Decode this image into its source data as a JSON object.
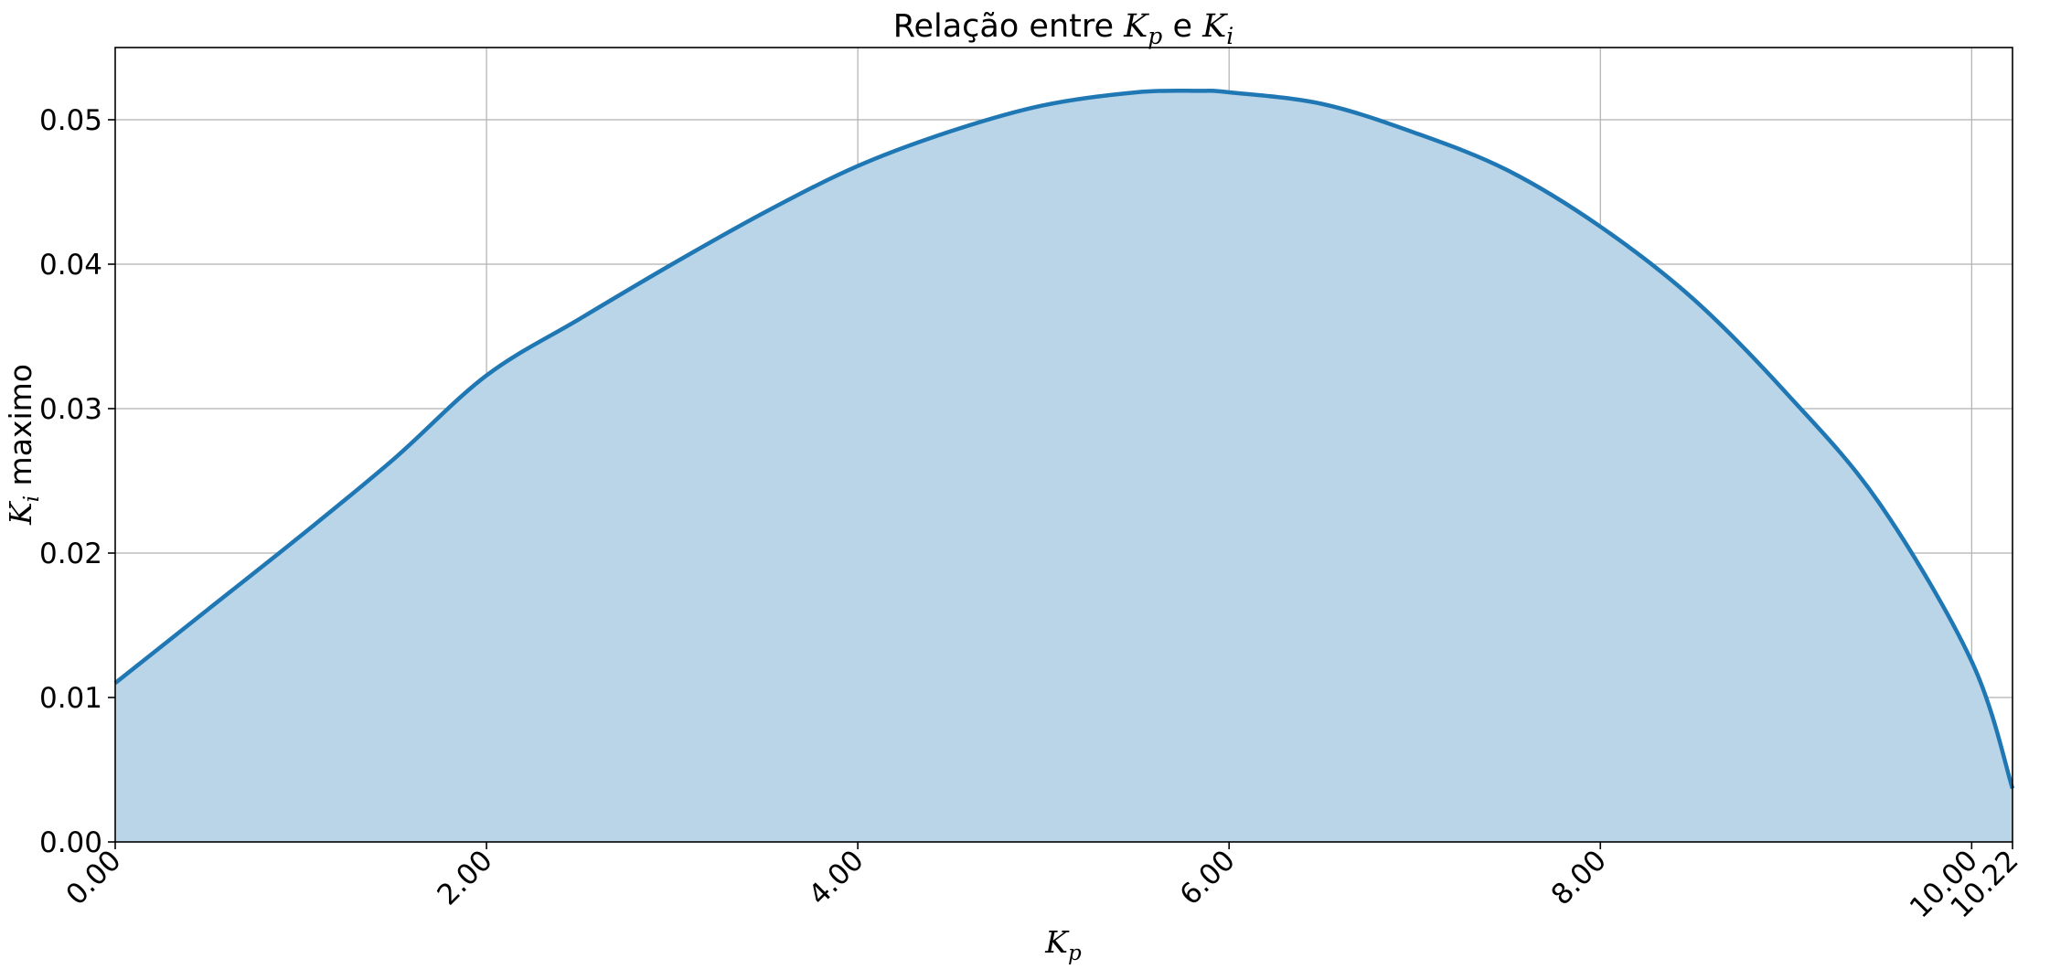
{
  "chart_data": {
    "type": "area",
    "title": {
      "prefix": "Relação entre ",
      "var1": "K",
      "sub1": "p",
      "middle": " e ",
      "var2": "K",
      "sub2": "i"
    },
    "xlabel": {
      "var": "K",
      "sub": "p"
    },
    "ylabel": {
      "var": "K",
      "sub": "i",
      "suffix": " maximo"
    },
    "xlim": [
      0,
      10.22
    ],
    "ylim": [
      0,
      0.055
    ],
    "xticks": [
      0,
      2,
      4,
      6,
      8,
      10,
      10.22
    ],
    "xtick_labels": [
      "0.00",
      "2.00",
      "4.00",
      "6.00",
      "8.00",
      "10.00",
      "10.22"
    ],
    "yticks": [
      0,
      0.01,
      0.02,
      0.03,
      0.04,
      0.05
    ],
    "ytick_labels": [
      "0.00",
      "0.01",
      "0.02",
      "0.03",
      "0.04",
      "0.05"
    ],
    "grid": true,
    "legend": "none",
    "colors": {
      "line": "#1f77b4",
      "fill": "#bad5e8",
      "grid": "#b0b0b0"
    },
    "x": [
      0,
      0.5,
      1,
      1.5,
      2,
      2.5,
      3,
      3.5,
      4,
      4.5,
      5,
      5.5,
      5.83,
      6,
      6.5,
      7,
      7.5,
      8,
      8.5,
      9,
      9.5,
      10,
      10.22
    ],
    "y": [
      0.011,
      0.0161,
      0.0212,
      0.0265,
      0.0323,
      0.0362,
      0.04,
      0.0436,
      0.0468,
      0.0492,
      0.051,
      0.0519,
      0.052,
      0.0519,
      0.0511,
      0.0491,
      0.0465,
      0.0426,
      0.0376,
      0.0311,
      0.0235,
      0.0125,
      0.0037
    ]
  }
}
